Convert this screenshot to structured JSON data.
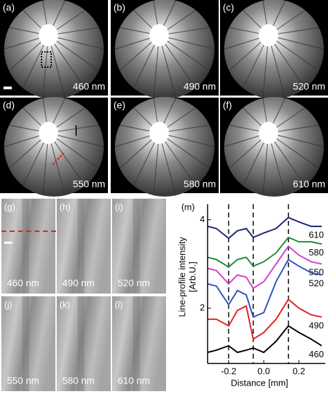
{
  "top_panels": [
    {
      "label": "(a)",
      "wavelength": "460 nm"
    },
    {
      "label": "(b)",
      "wavelength": "490 nm"
    },
    {
      "label": "(c)",
      "wavelength": "520 nm"
    },
    {
      "label": "(d)",
      "wavelength": "550 nm"
    },
    {
      "label": "(e)",
      "wavelength": "580 nm"
    },
    {
      "label": "(f)",
      "wavelength": "610 nm"
    }
  ],
  "bottom_panels": [
    {
      "label": "(g)",
      "wavelength": "460 nm"
    },
    {
      "label": "(h)",
      "wavelength": "490 nm"
    },
    {
      "label": "(i)",
      "wavelength": "520 nm"
    },
    {
      "label": "(j)",
      "wavelength": "550 nm"
    },
    {
      "label": "(k)",
      "wavelength": "580 nm"
    },
    {
      "label": "(l)",
      "wavelength": "610 nm"
    }
  ],
  "chart_data": {
    "type": "line",
    "panel_label": "(m)",
    "xlabel": "Distance [mm]",
    "ylabel": [
      "Line-profile intensity",
      "[Arb.U.]"
    ],
    "x": [
      -0.32,
      -0.27,
      -0.2,
      -0.15,
      -0.1,
      -0.06,
      0.0,
      0.07,
      0.14,
      0.2,
      0.27,
      0.33
    ],
    "series": [
      {
        "name": "610",
        "color": "#1c2378",
        "values": [
          3.85,
          3.8,
          3.58,
          3.75,
          3.8,
          3.6,
          3.7,
          3.8,
          4.05,
          3.95,
          3.85,
          3.85
        ]
      },
      {
        "name": "580",
        "color": "#1b8a3a",
        "values": [
          3.15,
          3.1,
          2.93,
          3.1,
          3.15,
          2.95,
          3.05,
          3.25,
          3.6,
          3.5,
          3.5,
          3.45
        ]
      },
      {
        "name": "550",
        "color": "#d040c8",
        "values": [
          2.9,
          2.85,
          2.55,
          2.75,
          2.7,
          2.45,
          2.6,
          3.0,
          3.4,
          3.2,
          3.05,
          3.0
        ]
      },
      {
        "name": "520",
        "color": "#3050c0",
        "values": [
          2.55,
          2.5,
          2.08,
          2.4,
          2.3,
          1.8,
          1.9,
          2.6,
          3.1,
          2.95,
          2.8,
          2.75
        ]
      },
      {
        "name": "490",
        "color": "#e02020",
        "values": [
          1.75,
          1.75,
          1.6,
          1.95,
          2.05,
          1.3,
          1.45,
          1.75,
          2.2,
          2.0,
          1.85,
          1.8
        ]
      },
      {
        "name": "460",
        "color": "#000000",
        "values": [
          1.0,
          1.05,
          1.15,
          1.0,
          1.05,
          1.1,
          1.0,
          1.25,
          1.6,
          1.45,
          1.3,
          1.15
        ]
      }
    ],
    "xlim": [
      -0.32,
      0.35
    ],
    "ylim": [
      0.75,
      4.35
    ],
    "xticks": [
      -0.2,
      {
        "value": 0,
        "label": "0.0"
      },
      0.2
    ],
    "yticks": [
      2,
      4
    ],
    "marker_lines": [
      -0.2,
      -0.06,
      0.14
    ]
  }
}
